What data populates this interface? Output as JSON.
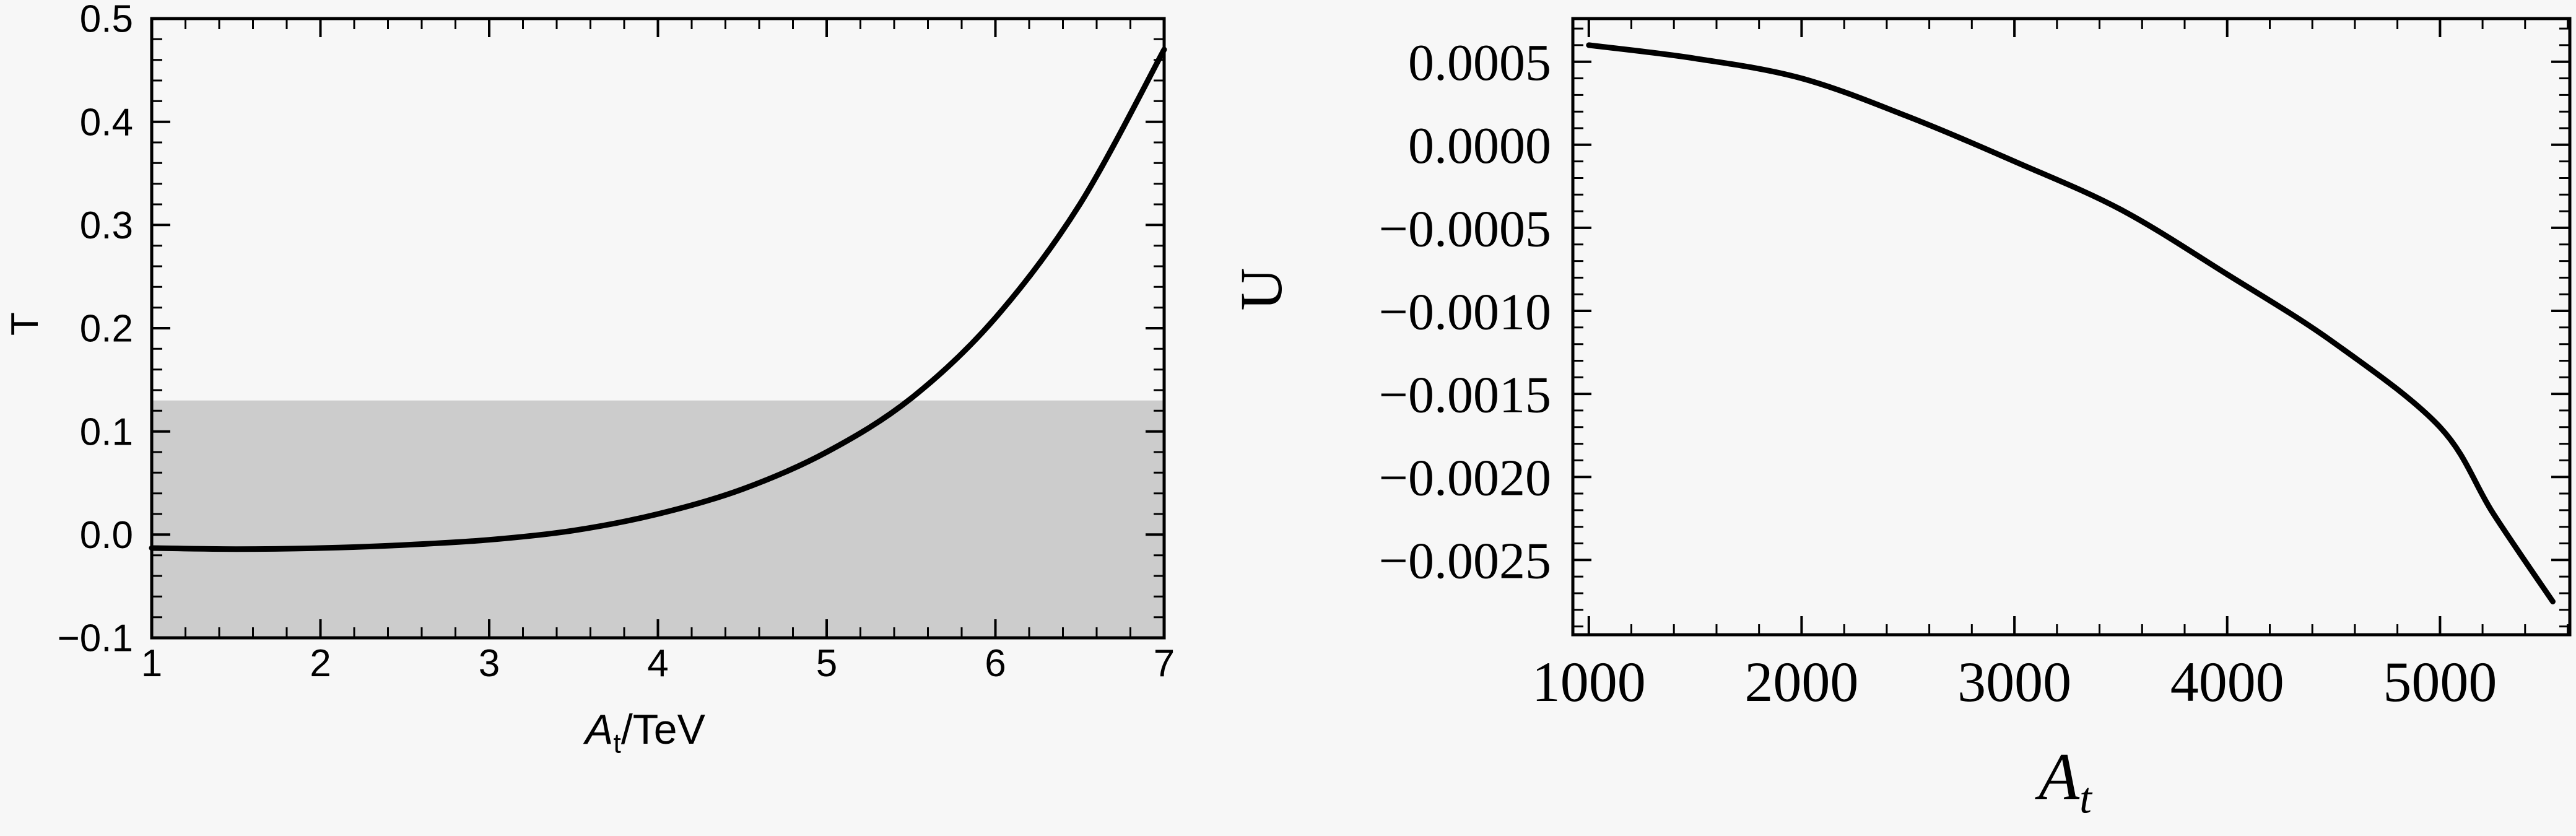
{
  "page": {
    "background": "#f7f7f7",
    "foreground": "#000000",
    "description": "Two-panel physics figure: oblique parameters T and U versus trilinear coupling At"
  },
  "chart_data": [
    {
      "type": "line",
      "id": "left",
      "title": "",
      "xlabel_text": "At/TeV",
      "xlabel": {
        "italic": "A",
        "sub": "t",
        "suffix": "/TeV"
      },
      "ylabel": "T",
      "xlim": [
        1,
        7
      ],
      "ylim": [
        -0.1,
        0.5
      ],
      "x_ticks": [
        1,
        2,
        3,
        4,
        5,
        6,
        7
      ],
      "x_tick_labels": [
        "1",
        "2",
        "3",
        "4",
        "5",
        "6",
        "7"
      ],
      "y_ticks": [
        0.5,
        0.4,
        0.3,
        0.2,
        0.1,
        0.0,
        -0.1
      ],
      "y_tick_labels": [
        "0.5",
        "0.4",
        "0.3",
        "0.2",
        "0.1",
        "0.0",
        "−0.1"
      ],
      "x_minor_step": 0.2,
      "y_minor_step": 0.02,
      "grid": false,
      "legend": null,
      "band": {
        "ymin": -0.1,
        "ymax": 0.13,
        "color": "#cccccc"
      },
      "series": [
        {
          "name": "T",
          "color": "#000000",
          "x": [
            1,
            1.5,
            2,
            2.5,
            3,
            3.5,
            4,
            4.5,
            5,
            5.5,
            6,
            6.5,
            7
          ],
          "y": [
            -0.013,
            -0.014,
            -0.013,
            -0.01,
            -0.005,
            0.004,
            0.02,
            0.044,
            0.08,
            0.132,
            0.21,
            0.32,
            0.47
          ]
        }
      ]
    },
    {
      "type": "line",
      "id": "right",
      "title": "",
      "xlabel_text": "At",
      "xlabel": {
        "italic": "A",
        "sub": "t",
        "suffix": ""
      },
      "ylabel": "U",
      "xlim": [
        925,
        5610
      ],
      "ylim": [
        -0.00295,
        0.00076
      ],
      "x_ticks": [
        1000,
        2000,
        3000,
        4000,
        5000
      ],
      "x_tick_labels": [
        "1000",
        "2000",
        "3000",
        "4000",
        "5000"
      ],
      "y_ticks": [
        0.0005,
        0.0,
        -0.0005,
        -0.001,
        -0.0015,
        -0.002,
        -0.0025
      ],
      "y_tick_labels": [
        "0.0005",
        "0.0000",
        "−0.0005",
        "−0.0010",
        "−0.0015",
        "−0.0020",
        "−0.0025"
      ],
      "x_minor_step": 200,
      "y_minor_step": 0.0001,
      "grid": false,
      "legend": null,
      "band": null,
      "series": [
        {
          "name": "U",
          "color": "#000000",
          "x": [
            1000,
            1500,
            2000,
            2500,
            3000,
            3500,
            4000,
            4500,
            5000,
            5250,
            5530
          ],
          "y": [
            0.0006,
            0.00052,
            0.0004,
            0.00017,
            -0.0001,
            -0.00039,
            -0.00078,
            -0.00119,
            -0.0017,
            -0.00222,
            -0.00275
          ]
        }
      ]
    }
  ]
}
